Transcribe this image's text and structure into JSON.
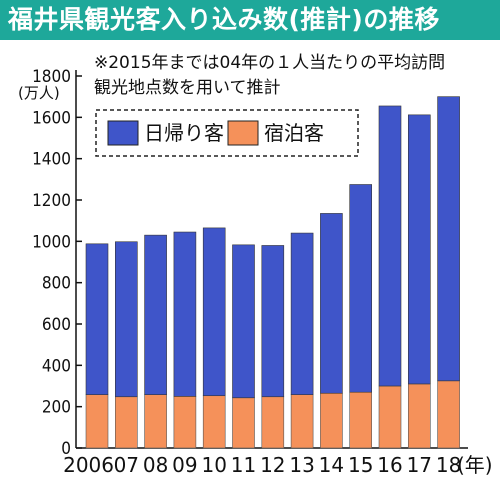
{
  "title": "福井県観光客入り込み数(推計)の推移",
  "note_line1": "※2015年までは04年の１人当たりの平均訪問",
  "note_line2": "観光地点数を用いて推計",
  "y_unit": "(万人)",
  "x_unit": "(年)",
  "colors": {
    "title_bg": "#1ea89a",
    "day_trip": "#3f55c9",
    "overnight": "#f5915a"
  },
  "chart_data": {
    "type": "bar",
    "stacked": true,
    "categories": [
      "2006",
      "07",
      "08",
      "09",
      "10",
      "11",
      "12",
      "13",
      "14",
      "15",
      "16",
      "17",
      "18"
    ],
    "series": [
      {
        "name": "宿泊客",
        "values": [
          258,
          248,
          258,
          250,
          253,
          243,
          248,
          258,
          265,
          270,
          300,
          310,
          325
        ]
      },
      {
        "name": "日帰り客",
        "values": [
          730,
          750,
          772,
          795,
          812,
          740,
          732,
          782,
          870,
          1005,
          1355,
          1302,
          1375
        ]
      }
    ],
    "y_ticks": [
      0,
      200,
      400,
      600,
      800,
      1000,
      1200,
      1400,
      1600,
      1800
    ],
    "ylim": [
      0,
      1800
    ],
    "legend_position": "top-left",
    "grid": false
  }
}
